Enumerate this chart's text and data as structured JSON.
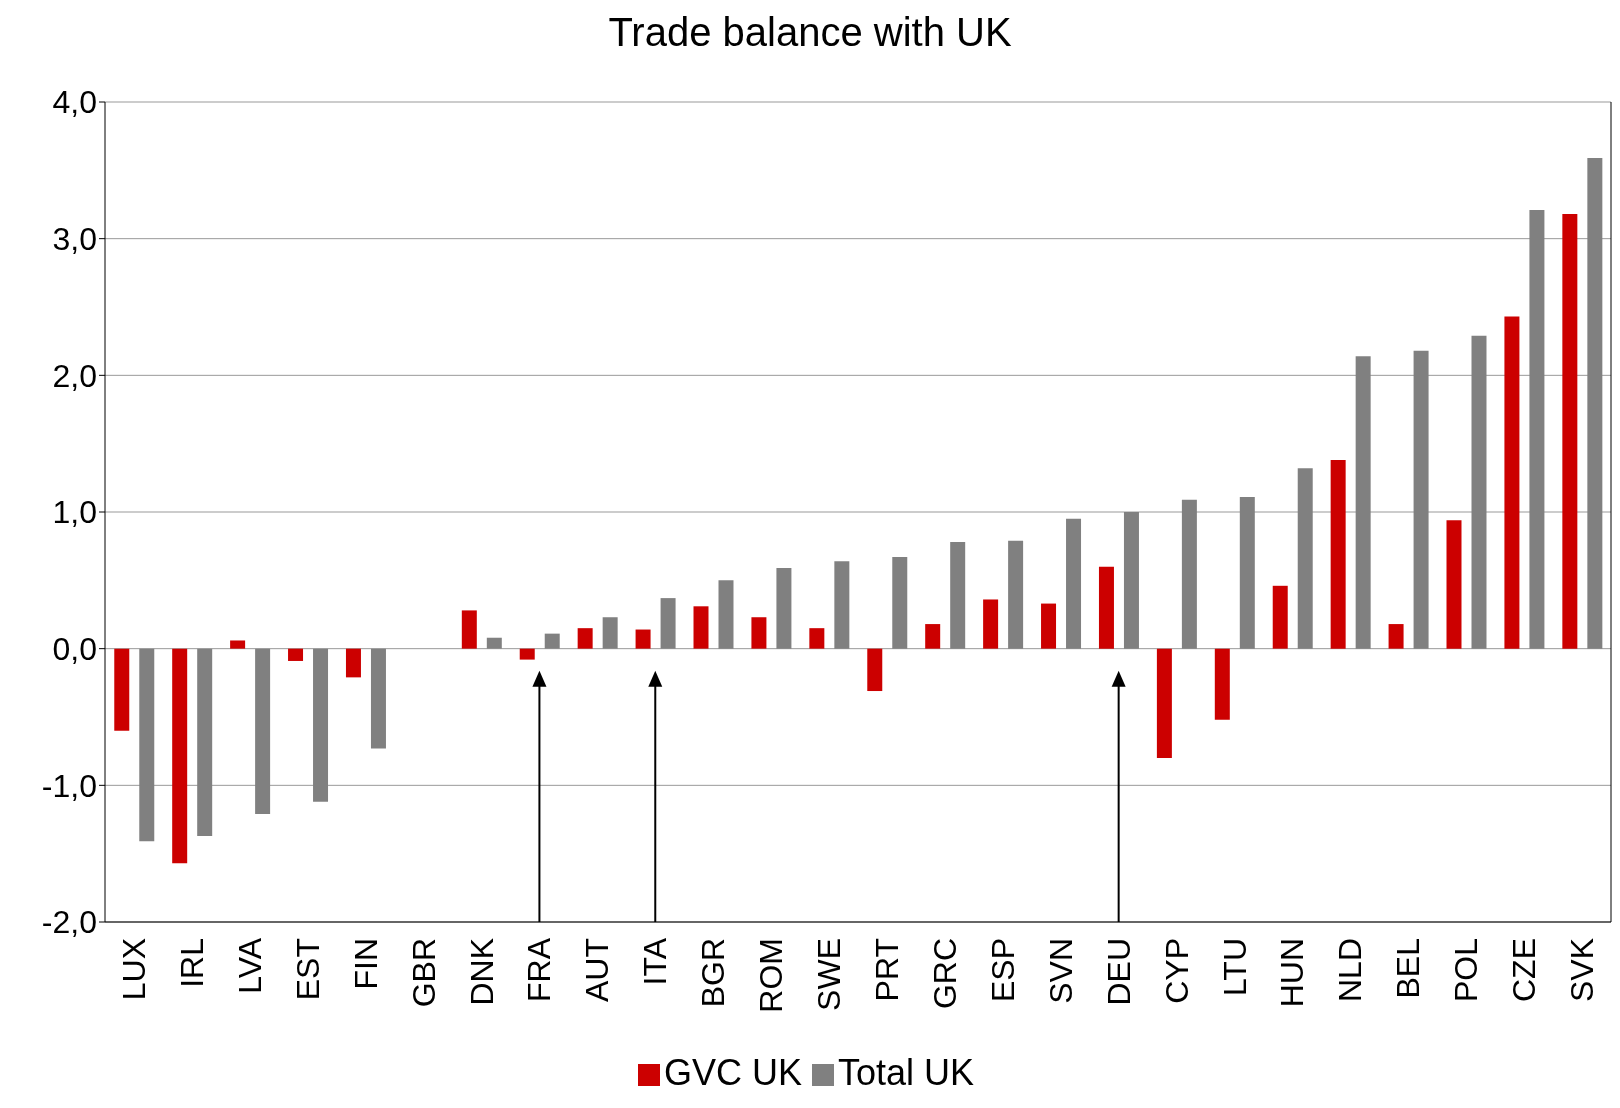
{
  "chart_data": {
    "type": "bar",
    "title": "Trade balance  with UK",
    "categories": [
      "LUX",
      "IRL",
      "LVA",
      "EST",
      "FIN",
      "GBR",
      "DNK",
      "FRA",
      "AUT",
      "ITA",
      "BGR",
      "ROM",
      "SWE",
      "PRT",
      "GRC",
      "ESP",
      "SVN",
      "DEU",
      "CYP",
      "LTU",
      "HUN",
      "NLD",
      "BEL",
      "POL",
      "CZE",
      "SVK"
    ],
    "series": [
      {
        "name": "GVC UK",
        "color": "#cc0000",
        "values": [
          -0.6,
          -1.57,
          0.06,
          -0.09,
          -0.21,
          null,
          0.28,
          -0.08,
          0.15,
          0.14,
          0.31,
          0.23,
          0.15,
          -0.31,
          0.18,
          0.36,
          0.33,
          0.6,
          -0.8,
          -0.52,
          0.46,
          1.38,
          0.18,
          0.94,
          2.43,
          3.18
        ]
      },
      {
        "name": "Total UK",
        "color": "#808080",
        "values": [
          -1.41,
          -1.37,
          -1.21,
          -1.12,
          -0.73,
          null,
          0.08,
          0.11,
          0.23,
          0.37,
          0.5,
          0.59,
          0.64,
          0.67,
          0.78,
          0.79,
          0.95,
          1.0,
          1.09,
          1.11,
          1.32,
          2.14,
          2.18,
          2.29,
          3.21,
          3.59
        ]
      }
    ],
    "ylim": [
      -2,
      4
    ],
    "yticks": [
      {
        "value": -2,
        "label": "-2,0"
      },
      {
        "value": -1,
        "label": "-1,0"
      },
      {
        "value": 0,
        "label": "0,0"
      },
      {
        "value": 1,
        "label": "1,0"
      },
      {
        "value": 2,
        "label": "2,0"
      },
      {
        "value": 3,
        "label": "3,0"
      },
      {
        "value": 4,
        "label": "4,0"
      }
    ],
    "grid": "y",
    "legend": "bottom",
    "annotations": [
      {
        "x": "FRA"
      },
      {
        "x": "ITA"
      },
      {
        "x": "DEU"
      }
    ]
  }
}
